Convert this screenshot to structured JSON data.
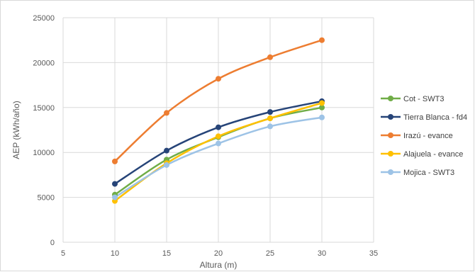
{
  "chart_data": {
    "type": "line",
    "title": "",
    "xlabel": "Altura (m)",
    "ylabel": "AEP (kWh/año)",
    "xlim": [
      5,
      35
    ],
    "ylim": [
      0,
      25000
    ],
    "xticks": [
      5,
      10,
      15,
      20,
      25,
      30,
      35
    ],
    "yticks": [
      0,
      5000,
      10000,
      15000,
      20000,
      25000
    ],
    "x": [
      10,
      15,
      20,
      25,
      30
    ],
    "grid": true,
    "legend_position": "right",
    "series": [
      {
        "name": "Cot - SWT3",
        "color": "#70ad47",
        "values": [
          5300,
          9200,
          11700,
          13800,
          15000
        ]
      },
      {
        "name": "Tierra Blanca - fd4",
        "color": "#264478",
        "values": [
          6500,
          10200,
          12800,
          14500,
          15700
        ]
      },
      {
        "name": "Irazú - evance",
        "color": "#ed7d31",
        "values": [
          9000,
          14400,
          18200,
          20600,
          22500
        ]
      },
      {
        "name": "Alajuela - evance",
        "color": "#ffc000",
        "values": [
          4600,
          8800,
          11800,
          13800,
          15500
        ]
      },
      {
        "name": "Mojica - SWT3",
        "color": "#9dc3e6",
        "values": [
          5000,
          8600,
          11000,
          12900,
          13900
        ]
      }
    ]
  }
}
